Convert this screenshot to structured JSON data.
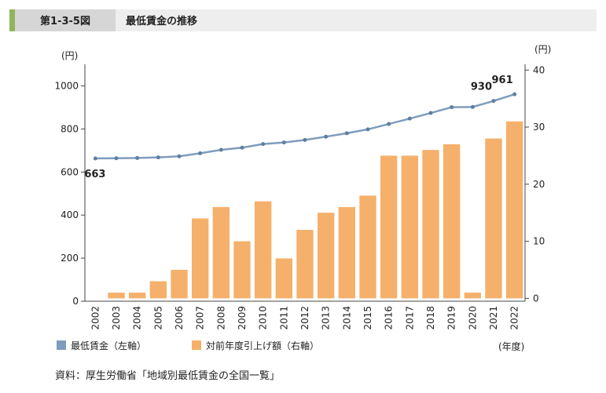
{
  "header": {
    "figure_number": "第1-3-5図",
    "title": "最低賃金の推移"
  },
  "chart_data": {
    "type": "bar-line",
    "y_unit": "(円)",
    "y2_unit": "(円)",
    "x_unit": "(年度)",
    "categories": [
      "2002",
      "2003",
      "2004",
      "2005",
      "2006",
      "2007",
      "2008",
      "2009",
      "2010",
      "2011",
      "2012",
      "2013",
      "2014",
      "2015",
      "2016",
      "2017",
      "2018",
      "2019",
      "2020",
      "2021",
      "2022"
    ],
    "series": [
      {
        "name": "最低賃金（左軸）",
        "type": "line",
        "color": "#7f9dbd",
        "values": [
          663,
          664,
          665,
          668,
          673,
          687,
          703,
          713,
          730,
          737,
          749,
          764,
          780,
          798,
          823,
          848,
          874,
          901,
          902,
          930,
          961
        ],
        "labeled": [
          0,
          19,
          20
        ]
      },
      {
        "name": "対前年度引上げ額（右軸）",
        "type": "bar",
        "axis": "y2",
        "color": "#f5b06b",
        "values": [
          0,
          1,
          1,
          3,
          5,
          14,
          16,
          10,
          17,
          7,
          12,
          15,
          16,
          18,
          25,
          25,
          26,
          27,
          1,
          28,
          31
        ]
      }
    ],
    "ylim": [
      0,
      1100
    ],
    "yticks": [
      0,
      200,
      400,
      600,
      800,
      1000
    ],
    "y2lim": [
      -0.5,
      41
    ],
    "y2ticks": [
      0,
      10,
      20,
      30,
      40
    ]
  },
  "source": "資料：厚生労働省「地域別最低賃金の全国一覧」"
}
